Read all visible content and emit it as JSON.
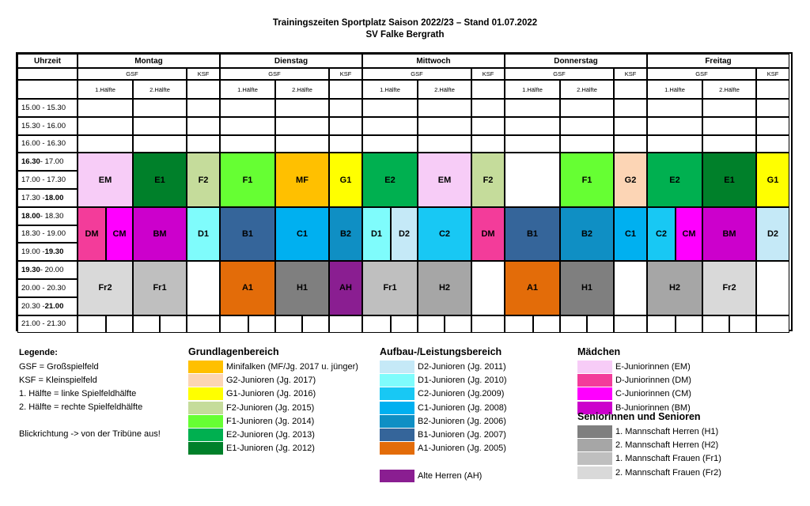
{
  "title": {
    "line1": "Trainingszeiten Sportplatz Saison 2022/23 – Stand 01.07.2022",
    "line2": "SV Falke Bergrath"
  },
  "header": {
    "time_col": "Uhrzeit",
    "gsf": "GSF",
    "ksf": "KSF",
    "half1": "1.Hälfte",
    "half2": "2.Hälfte",
    "days": [
      "Montag",
      "Dienstag",
      "Mittwoch",
      "Donnerstag",
      "Freitag"
    ]
  },
  "times": [
    {
      "a": "15.00 - 15.30",
      "b": ""
    },
    {
      "a": "15.30 - 16.00",
      "b": ""
    },
    {
      "a": "16.00 - 16.30",
      "b": ""
    },
    {
      "a": "16.30",
      "b": " - 17.00",
      "bold": "a"
    },
    {
      "a": "17.00 - 17.30",
      "b": ""
    },
    {
      "a": "17.30 - ",
      "b": "18.00",
      "bold": "b"
    },
    {
      "a": "18.00",
      "b": " - 18.30",
      "bold": "a"
    },
    {
      "a": "18.30 - 19.00",
      "b": ""
    },
    {
      "a": "19.00 - ",
      "b": "19.30",
      "bold": "b"
    },
    {
      "a": "19.30",
      "b": " - 20.00",
      "bold": "a"
    },
    {
      "a": "20.00 - 20.30",
      "b": ""
    },
    {
      "a": "20.30 - ",
      "b": "21.00",
      "bold": "b"
    },
    {
      "a": "21.00 - 21.30",
      "b": ""
    }
  ],
  "colors": {
    "EM": "#f7ccf7",
    "E1": "#00802a",
    "E2": "#00b050",
    "F1": "#66ff33",
    "F2": "#c5dc9b",
    "MF": "#ffc000",
    "G1": "#ffff00",
    "G2": "#fcd5b5",
    "DM": "#f33c9a",
    "CM": "#ff00ff",
    "BM": "#cc00cc",
    "D1": "#7ffcfc",
    "D2": "#c5e9f7",
    "C1": "#00b0f0",
    "C2": "#18c8f4",
    "B1": "#35659a",
    "B2": "#0f8fc4",
    "A1": "#e36c09",
    "AH": "#8a1e91",
    "H1": "#7f7f7f",
    "H2": "#a6a6a6",
    "Fr1": "#bfbfbf",
    "Fr2": "#d9d9d9",
    "W": "#ffffff"
  },
  "blocks": [
    {
      "label": "EM",
      "c": "EM",
      "x0": 0,
      "x1": 2,
      "r0": 3,
      "r1": 6
    },
    {
      "label": "E1",
      "c": "E1",
      "x0": 2,
      "x1": 4,
      "r0": 3,
      "r1": 6
    },
    {
      "label": "F2",
      "c": "F2",
      "x0": 4,
      "x1": 5,
      "r0": 3,
      "r1": 6
    },
    {
      "label": "F1",
      "c": "F1",
      "x0": 5,
      "x1": 7,
      "r0": 3,
      "r1": 6
    },
    {
      "label": "MF",
      "c": "MF",
      "x0": 7,
      "x1": 9,
      "r0": 3,
      "r1": 6
    },
    {
      "label": "G1",
      "c": "G1",
      "x0": 9,
      "x1": 10,
      "r0": 3,
      "r1": 6
    },
    {
      "label": "E2",
      "c": "E2",
      "x0": 10,
      "x1": 12,
      "r0": 3,
      "r1": 6
    },
    {
      "label": "EM",
      "c": "EM",
      "x0": 12,
      "x1": 14,
      "r0": 3,
      "r1": 6
    },
    {
      "label": "F2",
      "c": "F2",
      "x0": 14,
      "x1": 15,
      "r0": 3,
      "r1": 6
    },
    {
      "label": "",
      "c": "W",
      "x0": 15,
      "x1": 17,
      "r0": 3,
      "r1": 6
    },
    {
      "label": "F1",
      "c": "F1",
      "x0": 17,
      "x1": 19,
      "r0": 3,
      "r1": 6
    },
    {
      "label": "G2",
      "c": "G2",
      "x0": 19,
      "x1": 20,
      "r0": 3,
      "r1": 6
    },
    {
      "label": "E2",
      "c": "E2",
      "x0": 20,
      "x1": 22,
      "r0": 3,
      "r1": 6
    },
    {
      "label": "E1",
      "c": "E1",
      "x0": 22,
      "x1": 24,
      "r0": 3,
      "r1": 6
    },
    {
      "label": "G1",
      "c": "G1",
      "x0": 24,
      "x1": 25,
      "r0": 3,
      "r1": 6
    },
    {
      "label": "DM",
      "c": "DM",
      "x0": 0,
      "x1": 1,
      "r0": 6,
      "r1": 9
    },
    {
      "label": "CM",
      "c": "CM",
      "x0": 1,
      "x1": 2,
      "r0": 6,
      "r1": 9
    },
    {
      "label": "BM",
      "c": "BM",
      "x0": 2,
      "x1": 4,
      "r0": 6,
      "r1": 9
    },
    {
      "label": "D1",
      "c": "D1",
      "x0": 4,
      "x1": 5,
      "r0": 6,
      "r1": 9
    },
    {
      "label": "B1",
      "c": "B1",
      "x0": 5,
      "x1": 7,
      "r0": 6,
      "r1": 9
    },
    {
      "label": "C1",
      "c": "C1",
      "x0": 7,
      "x1": 9,
      "r0": 6,
      "r1": 9
    },
    {
      "label": "B2",
      "c": "B2",
      "x0": 9,
      "x1": 10,
      "r0": 6,
      "r1": 9
    },
    {
      "label": "D1",
      "c": "D1",
      "x0": 10,
      "x1": 11,
      "r0": 6,
      "r1": 9
    },
    {
      "label": "D2",
      "c": "D2",
      "x0": 11,
      "x1": 12,
      "r0": 6,
      "r1": 9
    },
    {
      "label": "C2",
      "c": "C2",
      "x0": 12,
      "x1": 14,
      "r0": 6,
      "r1": 9
    },
    {
      "label": "DM",
      "c": "DM",
      "x0": 14,
      "x1": 15,
      "r0": 6,
      "r1": 9
    },
    {
      "label": "B1",
      "c": "B1",
      "x0": 15,
      "x1": 17,
      "r0": 6,
      "r1": 9
    },
    {
      "label": "B2",
      "c": "B2",
      "x0": 17,
      "x1": 19,
      "r0": 6,
      "r1": 9
    },
    {
      "label": "C1",
      "c": "C1",
      "x0": 19,
      "x1": 20,
      "r0": 6,
      "r1": 9
    },
    {
      "label": "C2",
      "c": "C2",
      "x0": 20,
      "x1": 21,
      "r0": 6,
      "r1": 9
    },
    {
      "label": "CM",
      "c": "CM",
      "x0": 21,
      "x1": 22,
      "r0": 6,
      "r1": 9
    },
    {
      "label": "BM",
      "c": "BM",
      "x0": 22,
      "x1": 24,
      "r0": 6,
      "r1": 9
    },
    {
      "label": "D2",
      "c": "D2",
      "x0": 24,
      "x1": 25,
      "r0": 6,
      "r1": 9
    },
    {
      "label": "Fr2",
      "c": "Fr2",
      "x0": 0,
      "x1": 2,
      "r0": 9,
      "r1": 12
    },
    {
      "label": "Fr1",
      "c": "Fr1",
      "x0": 2,
      "x1": 4,
      "r0": 9,
      "r1": 12
    },
    {
      "label": "",
      "c": "W",
      "x0": 4,
      "x1": 5,
      "r0": 9,
      "r1": 12
    },
    {
      "label": "A1",
      "c": "A1",
      "x0": 5,
      "x1": 7,
      "r0": 9,
      "r1": 12
    },
    {
      "label": "H1",
      "c": "H1",
      "x0": 7,
      "x1": 9,
      "r0": 9,
      "r1": 12
    },
    {
      "label": "AH",
      "c": "AH",
      "x0": 9,
      "x1": 10,
      "r0": 9,
      "r1": 12
    },
    {
      "label": "Fr1",
      "c": "Fr1",
      "x0": 10,
      "x1": 12,
      "r0": 9,
      "r1": 12
    },
    {
      "label": "H2",
      "c": "H2",
      "x0": 12,
      "x1": 14,
      "r0": 9,
      "r1": 12
    },
    {
      "label": "",
      "c": "W",
      "x0": 14,
      "x1": 15,
      "r0": 9,
      "r1": 12
    },
    {
      "label": "A1",
      "c": "A1",
      "x0": 15,
      "x1": 17,
      "r0": 9,
      "r1": 12
    },
    {
      "label": "H1",
      "c": "H1",
      "x0": 17,
      "x1": 19,
      "r0": 9,
      "r1": 12
    },
    {
      "label": "",
      "c": "W",
      "x0": 19,
      "x1": 20,
      "r0": 9,
      "r1": 12
    },
    {
      "label": "H2",
      "c": "H2",
      "x0": 20,
      "x1": 22,
      "r0": 9,
      "r1": 12
    },
    {
      "label": "Fr2",
      "c": "Fr2",
      "x0": 22,
      "x1": 24,
      "r0": 9,
      "r1": 12
    },
    {
      "label": "",
      "c": "W",
      "x0": 24,
      "x1": 25,
      "r0": 9,
      "r1": 12
    }
  ],
  "legend": {
    "title": "Legende:",
    "lines": [
      "GSF = Großspielfeld",
      "KSF = Kleinspielfeld",
      "1. Hälfte = linke Spielfeldhälfte",
      "2. Hälfte = rechte Spielfeldhälfte",
      "",
      "Blickrichtung -> von der Tribüne aus!"
    ],
    "groups": [
      {
        "title": "Grundlagenbereich",
        "items": [
          {
            "c": "MF",
            "t": "Minifalken (MF/Jg. 2017 u. jünger)"
          },
          {
            "c": "G2",
            "t": "G2-Junioren (Jg. 2017)"
          },
          {
            "c": "G1",
            "t": "G1-Junioren (Jg. 2016)"
          },
          {
            "c": "F2",
            "t": "F2-Junioren (Jg. 2015)"
          },
          {
            "c": "F1",
            "t": "F1-Junioren (Jg. 2014)"
          },
          {
            "c": "E2",
            "t": "E2-Junioren (Jg. 2013)"
          },
          {
            "c": "E1",
            "t": "E1-Junioren (Jg. 2012)"
          }
        ]
      },
      {
        "title": "Aufbau-/Leistungsbereich",
        "items": [
          {
            "c": "D2",
            "t": "D2-Junioren (Jg. 2011)"
          },
          {
            "c": "D1",
            "t": "D1-Junioren (Jg. 2010)"
          },
          {
            "c": "C2",
            "t": "C2-Junioren (Jg.2009)"
          },
          {
            "c": "C1",
            "t": "C1-Junioren (Jg. 2008)"
          },
          {
            "c": "B2",
            "t": "B2-Junioren (Jg. 2006)"
          },
          {
            "c": "B1",
            "t": "B1-Junioren (Jg. 2007)"
          },
          {
            "c": "A1",
            "t": "A1-Junioren (Jg. 2005)"
          },
          {
            "c": "",
            "t": ""
          },
          {
            "c": "AH",
            "t": "Alte Herren (AH)"
          }
        ]
      },
      {
        "title": "Mädchen",
        "items": [
          {
            "c": "EM",
            "t": "E-Juniorinnen (EM)"
          },
          {
            "c": "DM",
            "t": "D-Juniorinnen (DM)"
          },
          {
            "c": "CM",
            "t": "C-Juniorinnen (CM)"
          },
          {
            "c": "BM",
            "t": "B-Juniorinnen (BM)"
          }
        ]
      },
      {
        "title": "Seniorinnen und Senioren",
        "items": [
          {
            "c": "H1",
            "t": "1. Mannschaft Herren (H1)"
          },
          {
            "c": "H2",
            "t": "2. Mannschaft Herren (H2)"
          },
          {
            "c": "Fr1",
            "t": "1. Mannschaft Frauen (Fr1)"
          },
          {
            "c": "Fr2",
            "t": "2. Mannschaft Frauen (Fr2)"
          }
        ]
      }
    ]
  }
}
